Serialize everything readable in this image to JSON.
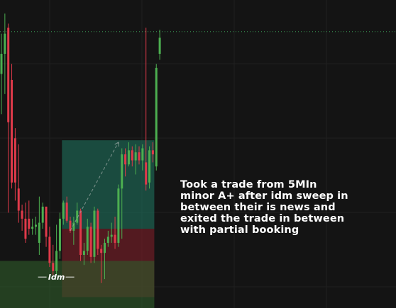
{
  "chart_data": {
    "type": "candlestick",
    "colors": {
      "background": "#141414",
      "bullish": "#4caf50",
      "bearish": "#e03a4a",
      "grid": "#202020",
      "target_zone": "#1f6e5a",
      "stop_zone": "#7a1f28",
      "idm_zone": "#2f5a2a",
      "price_line": "#3a9a55"
    },
    "candles": [
      {
        "o": 9,
        "h": 11,
        "l": 7,
        "c": 10
      },
      {
        "o": 10,
        "h": 12,
        "l": 8,
        "c": 11
      },
      {
        "o": 11.3,
        "h": 11.5,
        "l": 2.1,
        "c": 6.6
      },
      {
        "o": 8.7,
        "h": 9.5,
        "l": 3.3,
        "c": 3.6
      },
      {
        "o": 5.8,
        "h": 6.3,
        "l": 2.7,
        "c": 3.6
      },
      {
        "o": 3.3,
        "h": 5.5,
        "l": 1.6,
        "c": 2.2
      },
      {
        "o": 2.2,
        "h": 2.5,
        "l": 1.2,
        "c": 1.8
      },
      {
        "o": 1.8,
        "h": 2.6,
        "l": 0.6,
        "c": 0.8
      },
      {
        "o": 1.8,
        "h": 2.7,
        "l": 1.0,
        "c": 1.3
      },
      {
        "o": 1.3,
        "h": 1.8,
        "l": 1.0,
        "c": 1.4
      },
      {
        "o": 1.4,
        "h": 1.9,
        "l": 1.0,
        "c": 1.5
      },
      {
        "o": 0.6,
        "h": 2.9,
        "l": 0.0,
        "c": 1.6
      },
      {
        "o": 1.6,
        "h": 2.6,
        "l": 1.3,
        "c": 2.4
      },
      {
        "o": 2.4,
        "h": 2.4,
        "l": 0.4,
        "c": 0.9
      },
      {
        "o": 0.9,
        "h": 1.4,
        "l": -0.6,
        "c": -0.4
      },
      {
        "o": -0.4,
        "h": 0.5,
        "l": -1.0,
        "c": -0.8
      },
      {
        "o": -0.8,
        "h": 1.5,
        "l": -1.0,
        "c": 0.2
      },
      {
        "o": 0.2,
        "h": 2.1,
        "l": -0.2,
        "c": 1.8
      },
      {
        "o": 1.8,
        "h": 2.7,
        "l": 1.5,
        "c": 2.6
      },
      {
        "o": 2.6,
        "h": 2.9,
        "l": 1.6,
        "c": 1.7
      },
      {
        "o": 1.7,
        "h": 1.9,
        "l": 1.1,
        "c": 1.2
      },
      {
        "o": 1.2,
        "h": 1.9,
        "l": 0.5,
        "c": 1.6
      },
      {
        "o": 1.6,
        "h": 2.6,
        "l": 1.5,
        "c": 2.2
      },
      {
        "o": 2.2,
        "h": 2.3,
        "l": -0.3,
        "c": 0.0
      },
      {
        "o": 0.0,
        "h": 0.6,
        "l": -0.5,
        "c": 0.2
      },
      {
        "o": 0.2,
        "h": 1.8,
        "l": 0.0,
        "c": 1.4
      },
      {
        "o": 1.4,
        "h": 1.6,
        "l": -0.4,
        "c": -0.1
      },
      {
        "o": -0.1,
        "h": 2.4,
        "l": -0.4,
        "c": 2.2
      },
      {
        "o": 2.2,
        "h": 2.3,
        "l": 0.0,
        "c": 0.3
      },
      {
        "o": 0.3,
        "h": 0.5,
        "l": -1.4,
        "c": 0.1
      },
      {
        "o": 0.1,
        "h": 0.8,
        "l": -1.2,
        "c": 0.6
      },
      {
        "o": 0.6,
        "h": 1.2,
        "l": 0.4,
        "c": 0.9
      },
      {
        "o": 0.9,
        "h": 1.6,
        "l": 0.6,
        "c": 1.0
      },
      {
        "o": 1.0,
        "h": 1.9,
        "l": 0.3,
        "c": 0.6
      },
      {
        "o": 0.6,
        "h": 3.5,
        "l": 0.4,
        "c": 3.3
      },
      {
        "o": 3.3,
        "h": 5.3,
        "l": 0.8,
        "c": 5.0
      },
      {
        "o": 5.0,
        "h": 5.3,
        "l": 3.9,
        "c": 4.5
      },
      {
        "o": 4.5,
        "h": 5.6,
        "l": 4.4,
        "c": 5.2
      },
      {
        "o": 5.2,
        "h": 5.4,
        "l": 4.4,
        "c": 4.7
      },
      {
        "o": 4.7,
        "h": 5.5,
        "l": 4.0,
        "c": 5.1
      },
      {
        "o": 5.1,
        "h": 5.4,
        "l": 4.5,
        "c": 4.7
      },
      {
        "o": 4.7,
        "h": 5.5,
        "l": 4.2,
        "c": 5.3
      },
      {
        "o": 4.6,
        "h": 11.3,
        "l": 3.2,
        "c": 3.5
      },
      {
        "o": 3.6,
        "h": 5.4,
        "l": 3.3,
        "c": 5.2
      },
      {
        "o": 5.2,
        "h": 5.6,
        "l": 4.6,
        "c": 5.0
      },
      {
        "o": 4.4,
        "h": 9.5,
        "l": 4.2,
        "c": 9.3
      },
      {
        "o": 10.0,
        "h": 11.2,
        "l": 9.7,
        "c": 10.8
      }
    ],
    "price_line": 11.1,
    "position": {
      "start_index": 18,
      "end_index": 44,
      "entry": 1.3,
      "target": 5.7,
      "stop": -2.1
    },
    "idm_zone": {
      "start_index": 0,
      "end_index": 44,
      "top": -0.3,
      "bottom": -2.7,
      "label_index": 16,
      "label_price": -1.1
    },
    "sweep_arrow": {
      "from_index": 20,
      "from_price": 1.2,
      "to_index": 34,
      "to_price": 5.6
    }
  },
  "labels": {
    "idm": "Idm",
    "note": "Took a trade from 5MIn\nminor A+ after idm sweep in\nbetween their is news and\nexited the trade in between\nwith partial booking"
  }
}
